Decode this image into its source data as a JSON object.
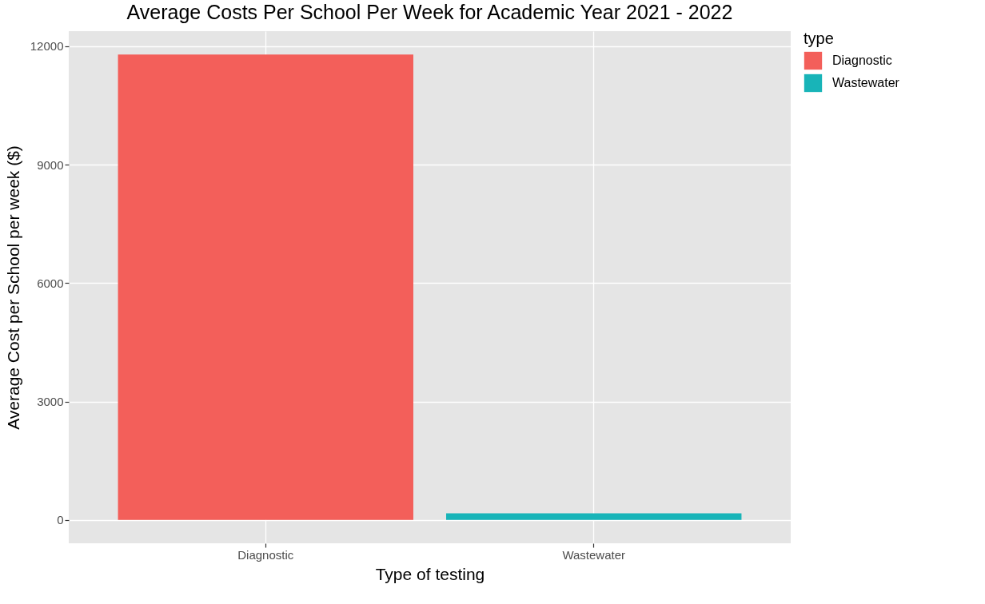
{
  "chart_data": {
    "type": "bar",
    "title": "Average Costs Per School Per Week for Academic Year 2021 - 2022",
    "xlabel": "Type of testing",
    "ylabel": "Average Cost per School per week ($)",
    "legend_title": "type",
    "categories": [
      "Diagnostic",
      "Wastewater"
    ],
    "series": [
      {
        "name": "Diagnostic",
        "color": "#f35f5a",
        "values": [
          11790,
          null
        ]
      },
      {
        "name": "Wastewater",
        "color": "#18b4b8",
        "values": [
          null,
          170
        ]
      }
    ],
    "ylim": [
      -590,
      12380
    ],
    "yticks": [
      0,
      3000,
      6000,
      9000,
      12000
    ],
    "grid": true,
    "legend": "right"
  }
}
